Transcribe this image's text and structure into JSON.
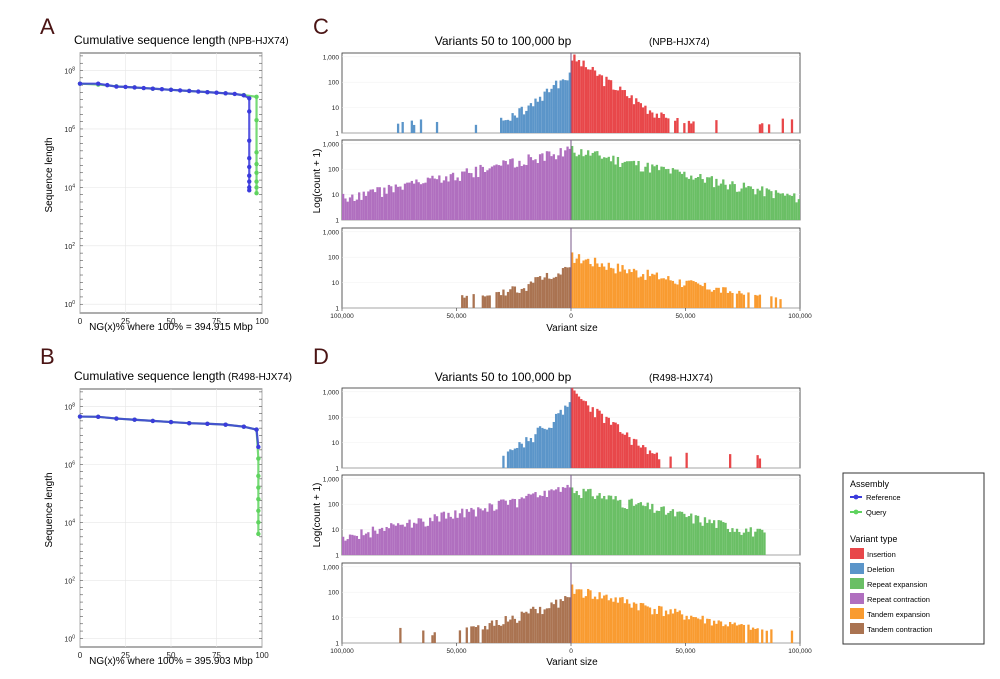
{
  "panels": {
    "A": {
      "label": "A",
      "title": "Cumulative sequence length",
      "tag": "(NPB-HJX74)",
      "xlabel": "NG(x)% where 100% = 394.915 Mbp",
      "ylabel": "Sequence length"
    },
    "B": {
      "label": "B",
      "title": "Cumulative sequence length",
      "tag": "(R498-HJX74)",
      "xlabel": "NG(x)% where 100% = 395.903 Mbp",
      "ylabel": "Sequence length"
    },
    "C": {
      "label": "C",
      "title": "Variants 50 to 100,000 bp",
      "tag": "(NPB-HJX74)",
      "xlabel": "Variant size",
      "ylabel": "Log(count + 1)"
    },
    "D": {
      "label": "D",
      "title": "Variants 50 to 100,000 bp",
      "tag": "(R498-HJX74)",
      "xlabel": "Variant size",
      "ylabel": "Log(count + 1)"
    }
  },
  "legend": {
    "assembly_title": "Assembly",
    "assembly": [
      {
        "name": "Reference",
        "color": "#3b3bdc"
      },
      {
        "name": "Query",
        "color": "#5fd35f"
      }
    ],
    "variant_title": "Variant type",
    "variants": [
      {
        "name": "Insertion",
        "color": "#e8474a"
      },
      {
        "name": "Deletion",
        "color": "#5b95c9"
      },
      {
        "name": "Repeat expansion",
        "color": "#6abf65"
      },
      {
        "name": "Repeat contraction",
        "color": "#b06fbf"
      },
      {
        "name": "Tandem expansion",
        "color": "#f99b30"
      },
      {
        "name": "Tandem contraction",
        "color": "#aa7351"
      }
    ]
  },
  "chart_data": [
    {
      "panel": "A",
      "type": "line",
      "title": "Cumulative sequence length(NPB-HJX74)",
      "xlabel": "NG(x)% where 100% = 394.915 Mbp",
      "ylabel": "Sequence length",
      "xlim": [
        0,
        100
      ],
      "ylim_log10": [
        -0.3,
        8.6
      ],
      "yscale": "log",
      "xticks": [
        "0",
        "25",
        "50",
        "75",
        "100"
      ],
      "yticks": [
        "10^0",
        "10^2",
        "10^4",
        "10^6",
        "10^8"
      ],
      "series": [
        {
          "name": "Reference",
          "color": "#3b3bdc",
          "x": [
            0,
            10,
            15,
            20,
            25,
            30,
            35,
            40,
            45,
            50,
            55,
            60,
            65,
            70,
            75,
            80,
            85,
            90,
            93,
            93,
            93,
            93,
            93,
            93,
            93,
            93,
            93
          ],
          "log10y": [
            7.55,
            7.55,
            7.5,
            7.45,
            7.44,
            7.42,
            7.4,
            7.38,
            7.36,
            7.34,
            7.32,
            7.3,
            7.28,
            7.26,
            7.24,
            7.22,
            7.2,
            7.15,
            7.05,
            6.6,
            5.6,
            5.0,
            4.7,
            4.4,
            4.2,
            4.0,
            3.9
          ]
        },
        {
          "name": "Query",
          "color": "#5fd35f",
          "x": [
            0,
            10,
            20,
            30,
            40,
            50,
            60,
            70,
            80,
            90,
            97,
            97,
            97,
            97,
            97,
            97,
            97,
            97
          ],
          "log10y": [
            7.55,
            7.52,
            7.46,
            7.42,
            7.38,
            7.34,
            7.3,
            7.26,
            7.22,
            7.16,
            7.1,
            6.3,
            5.2,
            4.8,
            4.5,
            4.2,
            4.0,
            3.8
          ]
        }
      ]
    },
    {
      "panel": "B",
      "type": "line",
      "title": "Cumulative sequence length(R498-HJX74)",
      "xlabel": "NG(x)% where 100% = 395.903 Mbp",
      "ylabel": "Sequence length",
      "xlim": [
        0,
        100
      ],
      "ylim_log10": [
        -0.3,
        8.6
      ],
      "yscale": "log",
      "xticks": [
        "0",
        "25",
        "50",
        "75",
        "100"
      ],
      "yticks": [
        "10^0",
        "10^2",
        "10^4",
        "10^6",
        "10^8"
      ],
      "series": [
        {
          "name": "Reference",
          "color": "#3b3bdc",
          "x": [
            0,
            10,
            20,
            30,
            40,
            50,
            60,
            70,
            80,
            90,
            97,
            98
          ],
          "log10y": [
            7.65,
            7.64,
            7.58,
            7.54,
            7.5,
            7.46,
            7.42,
            7.4,
            7.37,
            7.3,
            7.2,
            6.6
          ]
        },
        {
          "name": "Query",
          "color": "#5fd35f",
          "x": [
            0,
            10,
            20,
            30,
            40,
            50,
            60,
            70,
            80,
            90,
            97,
            98,
            98,
            98,
            98,
            98,
            98,
            98
          ],
          "log10y": [
            7.65,
            7.64,
            7.58,
            7.54,
            7.5,
            7.46,
            7.42,
            7.4,
            7.37,
            7.3,
            7.2,
            6.2,
            5.6,
            5.2,
            4.8,
            4.4,
            4.0,
            3.6
          ]
        }
      ]
    },
    {
      "panel": "C",
      "type": "bar",
      "title": "Variants 50 to 100,000 bp (NPB-HJX74)",
      "xlabel": "Variant size",
      "ylabel": "Log(count + 1)",
      "xlim": [
        -100000,
        100000
      ],
      "yscale": "log",
      "ylim": [
        1,
        1000
      ],
      "xticks": [
        "100,000",
        "50,000",
        "0",
        "50,000",
        "100,000"
      ],
      "yticks": [
        "1",
        "10",
        "100",
        "1,000"
      ],
      "bin_width": 1000,
      "series": [
        {
          "name": "Insertion",
          "color": "#e8474a",
          "side": "pos",
          "peak": 1100,
          "decay": 7000,
          "floor": 1,
          "limit": 100000,
          "seed": 3
        },
        {
          "name": "Deletion",
          "color": "#5b95c9",
          "side": "neg",
          "peak": 250,
          "decay": 6000,
          "floor": 1,
          "limit": 77000,
          "seed": 7
        },
        {
          "name": "Repeat expansion",
          "color": "#6abf65",
          "side": "pos",
          "peak": 650,
          "decay": 22000,
          "floor": 1,
          "limit": 100000,
          "seed": 11
        },
        {
          "name": "Repeat contraction",
          "color": "#b06fbf",
          "side": "neg",
          "peak": 650,
          "decay": 22000,
          "floor": 1,
          "limit": 100000,
          "seed": 13
        },
        {
          "name": "Tandem expansion",
          "color": "#f99b30",
          "side": "pos",
          "peak": 120,
          "decay": 20000,
          "floor": 1,
          "limit": 100000,
          "seed": 17
        },
        {
          "name": "Tandem contraction",
          "color": "#aa7351",
          "side": "neg",
          "peak": 40,
          "decay": 12000,
          "floor": 1,
          "limit": 55000,
          "seed": 19
        }
      ]
    },
    {
      "panel": "D",
      "type": "bar",
      "title": "Variants 50 to 100,000 bp (R498-HJX74)",
      "xlabel": "Variant size",
      "ylabel": "Log(count + 1)",
      "xlim": [
        -100000,
        100000
      ],
      "yscale": "log",
      "ylim": [
        1,
        1000
      ],
      "xticks": [
        "100,000",
        "50,000",
        "0",
        "50,000",
        "100,000"
      ],
      "yticks": [
        "1",
        "10",
        "100",
        "1,000"
      ],
      "bin_width": 1000,
      "series": [
        {
          "name": "Insertion",
          "color": "#e8474a",
          "side": "pos",
          "peak": 1100,
          "decay": 6000,
          "floor": 1,
          "limit": 85000,
          "seed": 23
        },
        {
          "name": "Deletion",
          "color": "#5b95c9",
          "side": "neg",
          "peak": 300,
          "decay": 6000,
          "floor": 1,
          "limit": 33000,
          "seed": 29
        },
        {
          "name": "Repeat expansion",
          "color": "#6abf65",
          "side": "pos",
          "peak": 450,
          "decay": 20000,
          "floor": 1,
          "limit": 85000,
          "seed": 31
        },
        {
          "name": "Repeat contraction",
          "color": "#b06fbf",
          "side": "neg",
          "peak": 450,
          "decay": 22000,
          "floor": 1,
          "limit": 100000,
          "seed": 37
        },
        {
          "name": "Tandem expansion",
          "color": "#f99b30",
          "side": "pos",
          "peak": 150,
          "decay": 20000,
          "floor": 1,
          "limit": 100000,
          "seed": 41
        },
        {
          "name": "Tandem contraction",
          "color": "#aa7351",
          "side": "neg",
          "peak": 60,
          "decay": 14000,
          "floor": 1,
          "limit": 75000,
          "seed": 43
        }
      ]
    }
  ]
}
